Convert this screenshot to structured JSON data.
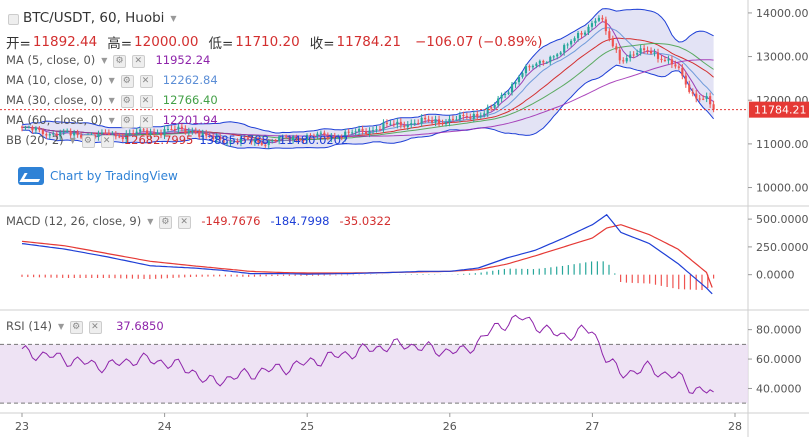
{
  "header": {
    "symbol": "BTC/USDT, 60, Huobi",
    "open_label": "开=",
    "open": "11892.44",
    "high_label": "高=",
    "high": "12000.00",
    "low_label": "低=",
    "low": "11710.20",
    "close_label": "收=",
    "close": "11784.21",
    "change": "−106.07 (−0.89%)"
  },
  "indicators": [
    {
      "label": "MA (5, close, 0)",
      "value": "11952.24",
      "color": "#8e24aa"
    },
    {
      "label": "MA (10, close, 0)",
      "value": "12262.84",
      "color": "#5c8ed6"
    },
    {
      "label": "MA (30, close, 0)",
      "value": "12766.40",
      "color": "#43a047"
    },
    {
      "label": "MA (60, close, 0)",
      "value": "12201.94",
      "color": "#8e24aa"
    }
  ],
  "bb": {
    "label": "BB (20, 2)",
    "values": [
      "12682.7995",
      "13885.5788",
      "11480.0202"
    ],
    "colors": [
      "#d32f2f",
      "#1e3fd6",
      "#1e3fd6"
    ]
  },
  "watermark": "Chart by TradingView",
  "macd_legend": {
    "label": "MACD (12, 26, close, 9)",
    "values": [
      "-149.7676",
      "-184.7998",
      "-35.0322"
    ],
    "colors": [
      "#d32f2f",
      "#1e3fd6",
      "#d32f2f"
    ]
  },
  "rsi_legend": {
    "label": "RSI (14)",
    "value": "37.6850",
    "color": "#8e24aa"
  },
  "price_axis": {
    "ticks": [
      "14000.00",
      "13000.00",
      "12000.00",
      "11000.00",
      "10000.00"
    ],
    "last_price": "11784.21"
  },
  "macd_axis": {
    "ticks": [
      "500.0000",
      "250.0000",
      "0.0000"
    ]
  },
  "rsi_axis": {
    "ticks": [
      "80.0000",
      "60.0000",
      "40.0000"
    ]
  },
  "time_axis": {
    "ticks": [
      "23",
      "24",
      "25",
      "26",
      "27",
      "28"
    ]
  },
  "colors": {
    "up": "#26a69a",
    "down": "#ef5350",
    "last_price": "#e53935",
    "bb_fill": "#dcdcf3",
    "rsi_fill": "#eadcf1"
  },
  "chart_data": [
    {
      "type": "candlestick",
      "title": "BTC/USDT, 60, Huobi",
      "ylim": [
        9600,
        14250
      ],
      "x_range": [
        "23",
        "28"
      ],
      "close_anchors": [
        [
          23.0,
          11350
        ],
        [
          23.2,
          11250
        ],
        [
          23.4,
          11200
        ],
        [
          23.6,
          11180
        ],
        [
          23.8,
          11240
        ],
        [
          24.0,
          11300
        ],
        [
          24.2,
          11330
        ],
        [
          24.3,
          11120
        ],
        [
          24.5,
          11080
        ],
        [
          24.7,
          11050
        ],
        [
          24.9,
          11150
        ],
        [
          25.1,
          11180
        ],
        [
          25.3,
          11220
        ],
        [
          25.5,
          11380
        ],
        [
          25.7,
          11480
        ],
        [
          25.9,
          11520
        ],
        [
          26.1,
          11580
        ],
        [
          26.3,
          11820
        ],
        [
          26.4,
          12200
        ],
        [
          26.5,
          12650
        ],
        [
          26.6,
          12780
        ],
        [
          26.7,
          13000
        ],
        [
          26.8,
          13150
        ],
        [
          26.9,
          13500
        ],
        [
          27.0,
          13780
        ],
        [
          27.05,
          13900
        ],
        [
          27.1,
          13500
        ],
        [
          27.2,
          12950
        ],
        [
          27.3,
          13050
        ],
        [
          27.4,
          13150
        ],
        [
          27.5,
          12950
        ],
        [
          27.6,
          12700
        ],
        [
          27.7,
          12150
        ],
        [
          27.8,
          12000
        ],
        [
          27.85,
          11784.21
        ]
      ],
      "series": [
        {
          "name": "MA (5, close, 0)",
          "last": 11952.24
        },
        {
          "name": "MA (10, close, 0)",
          "last": 12262.84
        },
        {
          "name": "MA (30, close, 0)",
          "last": 12766.4
        },
        {
          "name": "MA (60, close, 0)",
          "last": 12201.94
        },
        {
          "name": "BB (20, 2)",
          "values": [
            12682.7995,
            13885.5788,
            11480.0202
          ]
        }
      ]
    },
    {
      "type": "line",
      "title": "MACD (12, 26, close, 9)",
      "ylim": [
        -300,
        600
      ],
      "macd": [
        [
          23.0,
          280
        ],
        [
          23.3,
          230
        ],
        [
          23.6,
          160
        ],
        [
          23.9,
          80
        ],
        [
          24.2,
          60
        ],
        [
          24.4,
          40
        ],
        [
          24.6,
          10
        ],
        [
          24.8,
          10
        ],
        [
          25.0,
          5
        ],
        [
          25.3,
          10
        ],
        [
          25.6,
          20
        ],
        [
          25.8,
          30
        ],
        [
          26.0,
          30
        ],
        [
          26.2,
          60
        ],
        [
          26.4,
          150
        ],
        [
          26.6,
          220
        ],
        [
          26.8,
          330
        ],
        [
          27.0,
          450
        ],
        [
          27.1,
          540
        ],
        [
          27.2,
          380
        ],
        [
          27.4,
          280
        ],
        [
          27.6,
          100
        ],
        [
          27.8,
          -120
        ],
        [
          27.85,
          -184.7998
        ]
      ],
      "signal": [
        [
          23.0,
          300
        ],
        [
          23.3,
          260
        ],
        [
          23.6,
          190
        ],
        [
          23.9,
          120
        ],
        [
          24.2,
          80
        ],
        [
          24.4,
          55
        ],
        [
          24.6,
          30
        ],
        [
          24.8,
          20
        ],
        [
          25.0,
          15
        ],
        [
          25.3,
          15
        ],
        [
          25.6,
          20
        ],
        [
          25.8,
          25
        ],
        [
          26.0,
          30
        ],
        [
          26.2,
          45
        ],
        [
          26.4,
          95
        ],
        [
          26.6,
          170
        ],
        [
          26.8,
          250
        ],
        [
          27.0,
          330
        ],
        [
          27.1,
          420
        ],
        [
          27.2,
          450
        ],
        [
          27.4,
          360
        ],
        [
          27.6,
          230
        ],
        [
          27.8,
          20
        ],
        [
          27.85,
          -149.7676
        ]
      ],
      "last_histogram": -35.0322
    },
    {
      "type": "line",
      "title": "RSI (14)",
      "ylim": [
        24,
        92
      ],
      "bands": [
        30,
        70
      ],
      "values": [
        [
          23.0,
          65
        ],
        [
          23.2,
          62
        ],
        [
          23.4,
          58
        ],
        [
          23.6,
          55
        ],
        [
          23.8,
          60
        ],
        [
          24.0,
          58
        ],
        [
          24.2,
          52
        ],
        [
          24.3,
          44
        ],
        [
          24.5,
          48
        ],
        [
          24.7,
          52
        ],
        [
          24.9,
          55
        ],
        [
          25.1,
          60
        ],
        [
          25.3,
          64
        ],
        [
          25.5,
          68
        ],
        [
          25.7,
          70
        ],
        [
          25.9,
          66
        ],
        [
          26.1,
          65
        ],
        [
          26.2,
          72
        ],
        [
          26.3,
          80
        ],
        [
          26.4,
          85
        ],
        [
          26.5,
          88
        ],
        [
          26.6,
          84
        ],
        [
          26.7,
          78
        ],
        [
          26.8,
          76
        ],
        [
          27.0,
          80
        ],
        [
          27.1,
          60
        ],
        [
          27.2,
          50
        ],
        [
          27.3,
          52
        ],
        [
          27.4,
          54
        ],
        [
          27.5,
          50
        ],
        [
          27.6,
          48
        ],
        [
          27.7,
          40
        ],
        [
          27.8,
          38
        ],
        [
          27.85,
          37.685
        ]
      ]
    }
  ]
}
